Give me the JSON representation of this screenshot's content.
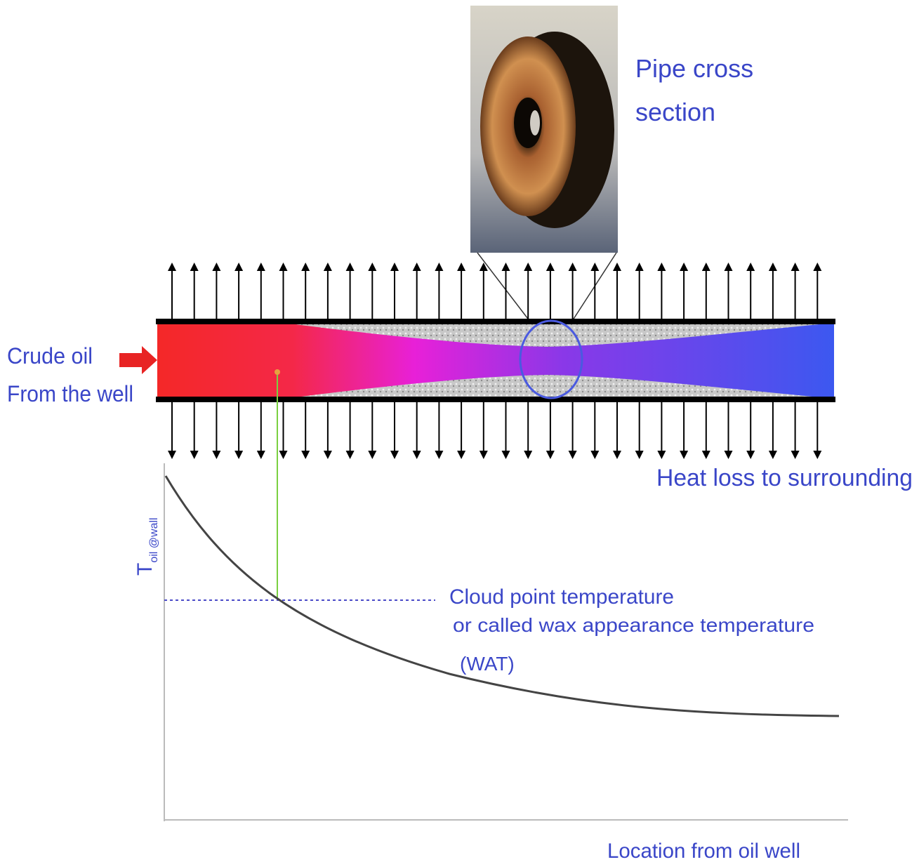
{
  "photo": {
    "caption_line1": "Pipe cross",
    "caption_line2": "section"
  },
  "inlet": {
    "line1": "Crude oil",
    "line2": "From the well"
  },
  "heat_loss": "Heat loss to surrounding",
  "y_axis": {
    "main": "T",
    "sub": "oil @wall"
  },
  "cloud_point": {
    "line1": "Cloud point temperature",
    "line2": "or called wax appearance temperature",
    "line3": "(WAT)"
  },
  "x_axis": "Location from oil well"
}
